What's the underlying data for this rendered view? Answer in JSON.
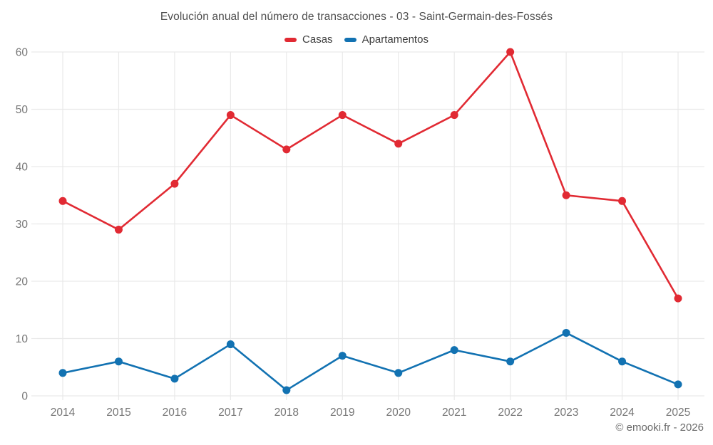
{
  "chart_data": {
    "type": "line",
    "title": "Evolución anual del número de transacciones - 03 - Saint-Germain-des-Fossés",
    "categories": [
      2014,
      2015,
      2016,
      2017,
      2018,
      2019,
      2020,
      2021,
      2022,
      2023,
      2024,
      2025
    ],
    "series": [
      {
        "name": "Casas",
        "color": "#e12a33",
        "values": [
          34,
          29,
          37,
          49,
          43,
          49,
          44,
          49,
          60,
          35,
          34,
          17
        ]
      },
      {
        "name": "Apartamentos",
        "color": "#1272b2",
        "values": [
          4,
          6,
          3,
          9,
          1,
          7,
          4,
          8,
          6,
          11,
          6,
          2
        ]
      }
    ],
    "xlabel": "",
    "ylabel": "",
    "ylim": [
      0,
      60
    ],
    "yticks": [
      0,
      10,
      20,
      30,
      40,
      50,
      60
    ],
    "grid": true,
    "legend_position": "top",
    "grid_color": "#e9e9e9",
    "axis_text_color": "#767676"
  },
  "legend": {
    "items": [
      {
        "label": "Casas",
        "color": "#e12a33"
      },
      {
        "label": "Apartamentos",
        "color": "#1272b2"
      }
    ]
  },
  "footer": {
    "credit": "© emooki.fr - 2026"
  }
}
